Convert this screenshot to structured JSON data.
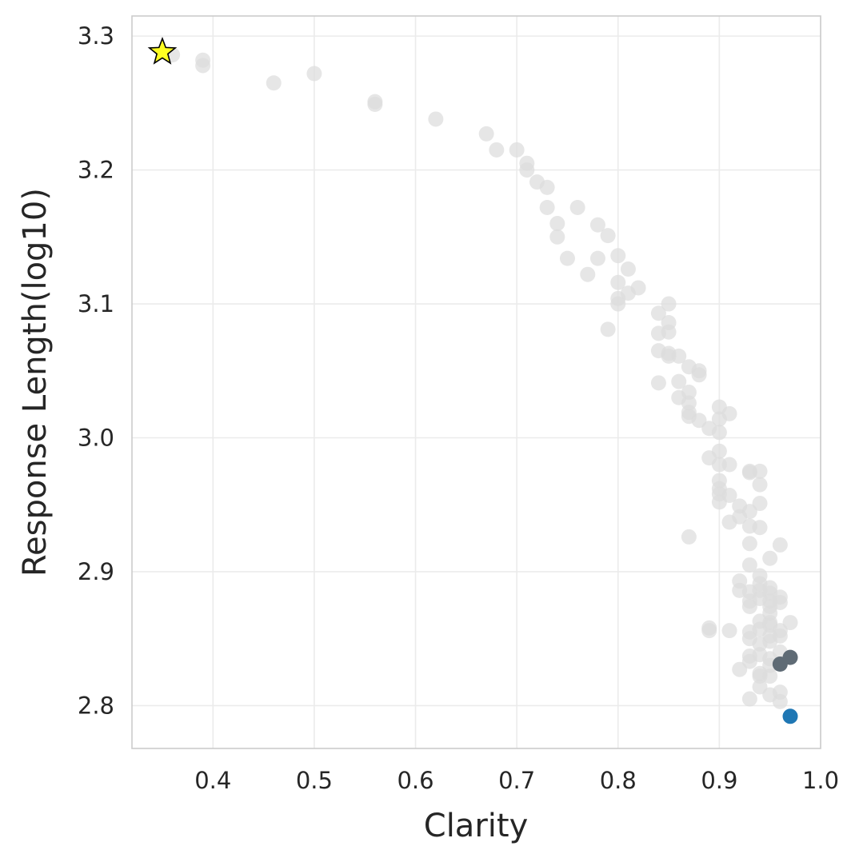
{
  "chart_data": {
    "type": "scatter",
    "title": "",
    "xlabel": "Clarity",
    "ylabel": "Response Length(log10)",
    "xlim": [
      0.32,
      1.0
    ],
    "ylim": [
      2.768,
      3.315
    ],
    "xticks": [
      0.4,
      0.5,
      0.6,
      0.7,
      0.8,
      0.9,
      1.0
    ],
    "xtick_labels": [
      "0.4",
      "0.5",
      "0.6",
      "0.7",
      "0.8",
      "0.9",
      "1.0"
    ],
    "yticks": [
      2.8,
      2.9,
      3.0,
      3.1,
      3.2,
      3.3
    ],
    "ytick_labels": [
      "2.8",
      "2.9",
      "3.0",
      "3.1",
      "3.2",
      "3.3"
    ],
    "grid": true,
    "legend": "none",
    "colors": {
      "background_points": "#dcdcdc",
      "highlight_dark": "#5f6b75",
      "highlight_blue": "#1f77b4",
      "star_fill": "#ffff22",
      "star_edge": "#000000",
      "grid": "#ebebeb",
      "spine": "#cccccc"
    },
    "series": [
      {
        "role": "background",
        "marker": "circle",
        "points": [
          [
            0.36,
            3.286
          ],
          [
            0.39,
            3.282
          ],
          [
            0.39,
            3.278
          ],
          [
            0.46,
            3.265
          ],
          [
            0.5,
            3.272
          ],
          [
            0.56,
            3.251
          ],
          [
            0.56,
            3.249
          ],
          [
            0.62,
            3.238
          ],
          [
            0.67,
            3.227
          ],
          [
            0.68,
            3.215
          ],
          [
            0.7,
            3.215
          ],
          [
            0.71,
            3.205
          ],
          [
            0.71,
            3.2
          ],
          [
            0.72,
            3.191
          ],
          [
            0.73,
            3.187
          ],
          [
            0.73,
            3.172
          ],
          [
            0.74,
            3.16
          ],
          [
            0.74,
            3.15
          ],
          [
            0.75,
            3.134
          ],
          [
            0.76,
            3.172
          ],
          [
            0.77,
            3.122
          ],
          [
            0.78,
            3.159
          ],
          [
            0.78,
            3.134
          ],
          [
            0.79,
            3.151
          ],
          [
            0.79,
            3.081
          ],
          [
            0.8,
            3.136
          ],
          [
            0.8,
            3.116
          ],
          [
            0.8,
            3.104
          ],
          [
            0.8,
            3.1
          ],
          [
            0.81,
            3.126
          ],
          [
            0.81,
            3.108
          ],
          [
            0.82,
            3.112
          ],
          [
            0.84,
            3.093
          ],
          [
            0.84,
            3.078
          ],
          [
            0.84,
            3.065
          ],
          [
            0.84,
            3.041
          ],
          [
            0.85,
            3.1
          ],
          [
            0.85,
            3.086
          ],
          [
            0.85,
            3.079
          ],
          [
            0.85,
            3.063
          ],
          [
            0.85,
            3.061
          ],
          [
            0.86,
            3.061
          ],
          [
            0.86,
            3.042
          ],
          [
            0.86,
            3.03
          ],
          [
            0.87,
            3.053
          ],
          [
            0.87,
            3.034
          ],
          [
            0.87,
            3.026
          ],
          [
            0.87,
            3.019
          ],
          [
            0.87,
            3.016
          ],
          [
            0.87,
            2.926
          ],
          [
            0.88,
            3.05
          ],
          [
            0.88,
            3.047
          ],
          [
            0.88,
            3.013
          ],
          [
            0.89,
            3.007
          ],
          [
            0.89,
            2.985
          ],
          [
            0.89,
            2.858
          ],
          [
            0.89,
            2.856
          ],
          [
            0.9,
            3.023
          ],
          [
            0.9,
            3.014
          ],
          [
            0.9,
            3.004
          ],
          [
            0.9,
            2.99
          ],
          [
            0.9,
            2.98
          ],
          [
            0.9,
            2.968
          ],
          [
            0.9,
            2.962
          ],
          [
            0.9,
            2.958
          ],
          [
            0.9,
            2.952
          ],
          [
            0.91,
            3.018
          ],
          [
            0.91,
            2.98
          ],
          [
            0.91,
            2.957
          ],
          [
            0.91,
            2.937
          ],
          [
            0.91,
            2.856
          ],
          [
            0.92,
            2.949
          ],
          [
            0.92,
            2.941
          ],
          [
            0.92,
            2.893
          ],
          [
            0.92,
            2.886
          ],
          [
            0.92,
            2.827
          ],
          [
            0.93,
            2.975
          ],
          [
            0.93,
            2.974
          ],
          [
            0.93,
            2.945
          ],
          [
            0.93,
            2.934
          ],
          [
            0.93,
            2.921
          ],
          [
            0.93,
            2.905
          ],
          [
            0.93,
            2.885
          ],
          [
            0.93,
            2.878
          ],
          [
            0.93,
            2.874
          ],
          [
            0.93,
            2.855
          ],
          [
            0.93,
            2.85
          ],
          [
            0.93,
            2.837
          ],
          [
            0.93,
            2.833
          ],
          [
            0.93,
            2.805
          ],
          [
            0.94,
            2.975
          ],
          [
            0.94,
            2.965
          ],
          [
            0.94,
            2.951
          ],
          [
            0.94,
            2.933
          ],
          [
            0.94,
            2.897
          ],
          [
            0.94,
            2.891
          ],
          [
            0.94,
            2.886
          ],
          [
            0.94,
            2.88
          ],
          [
            0.94,
            2.863
          ],
          [
            0.94,
            2.857
          ],
          [
            0.94,
            2.846
          ],
          [
            0.94,
            2.838
          ],
          [
            0.94,
            2.824
          ],
          [
            0.94,
            2.822
          ],
          [
            0.94,
            2.814
          ],
          [
            0.95,
            2.91
          ],
          [
            0.95,
            2.888
          ],
          [
            0.95,
            2.884
          ],
          [
            0.95,
            2.878
          ],
          [
            0.95,
            2.874
          ],
          [
            0.95,
            2.869
          ],
          [
            0.95,
            2.862
          ],
          [
            0.95,
            2.86
          ],
          [
            0.95,
            2.852
          ],
          [
            0.95,
            2.848
          ],
          [
            0.95,
            2.835
          ],
          [
            0.95,
            2.83
          ],
          [
            0.95,
            2.822
          ],
          [
            0.95,
            2.808
          ],
          [
            0.96,
            2.92
          ],
          [
            0.96,
            2.881
          ],
          [
            0.96,
            2.877
          ],
          [
            0.96,
            2.856
          ],
          [
            0.96,
            2.852
          ],
          [
            0.96,
            2.84
          ],
          [
            0.96,
            2.81
          ],
          [
            0.96,
            2.803
          ],
          [
            0.97,
            2.862
          ]
        ]
      },
      {
        "role": "highlight-dark",
        "marker": "circle",
        "points": [
          [
            0.96,
            2.831
          ],
          [
            0.97,
            2.836
          ]
        ]
      },
      {
        "role": "highlight-blue",
        "marker": "circle",
        "points": [
          [
            0.97,
            2.792
          ]
        ]
      },
      {
        "role": "star",
        "marker": "star",
        "points": [
          [
            0.35,
            3.288
          ]
        ]
      }
    ]
  }
}
